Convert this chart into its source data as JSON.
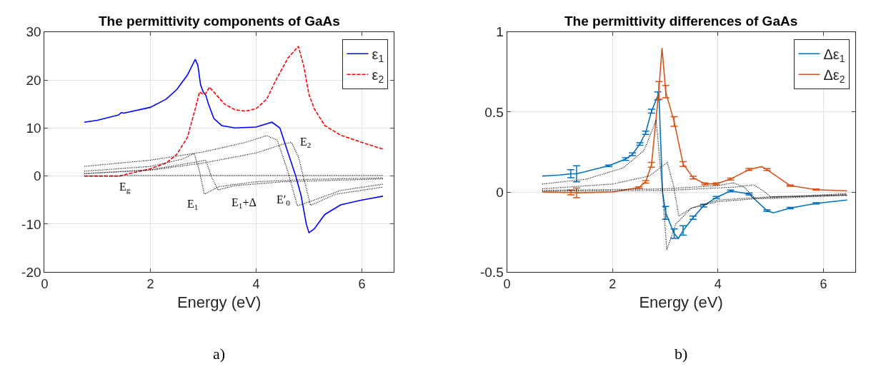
{
  "chart_data": [
    {
      "type": "line",
      "title": "The permittivity components of GaAs",
      "xlabel": "Energy (eV)",
      "xlim": [
        0,
        6.6
      ],
      "xticks": [
        0,
        2,
        4,
        6
      ],
      "ylim": [
        -20,
        30
      ],
      "yticks": [
        -20,
        -10,
        0,
        10,
        20,
        30
      ],
      "grid": true,
      "legend": "top right",
      "series": [
        {
          "name": "ε$_{1}$",
          "color": "#0000ff",
          "line_style": "solid",
          "x": [
            0.75,
            1.0,
            1.4,
            1.45,
            1.5,
            2.0,
            2.3,
            2.5,
            2.7,
            2.85,
            2.9,
            2.95,
            3.0,
            3.05,
            3.1,
            3.2,
            3.35,
            3.6,
            4.0,
            4.3,
            4.45,
            4.6,
            4.75,
            4.85,
            4.95,
            5.0,
            5.1,
            5.3,
            5.6,
            6.0,
            6.4
          ],
          "values": [
            11.2,
            11.6,
            12.7,
            13.2,
            13.1,
            14.3,
            16,
            18,
            21,
            24.3,
            23,
            19,
            17.5,
            16.8,
            15,
            12,
            10.5,
            10,
            10.2,
            11.2,
            10,
            5,
            0,
            -4,
            -10,
            -11.8,
            -11,
            -8,
            -6,
            -5,
            -4.2
          ]
        },
        {
          "name": "ε$_{2}$",
          "color": "#ff0000",
          "line_style": "dashed",
          "x": [
            0.75,
            1.42,
            1.6,
            2.0,
            2.3,
            2.5,
            2.7,
            2.85,
            2.93,
            3.0,
            3.05,
            3.12,
            3.2,
            3.4,
            3.6,
            3.8,
            4.0,
            4.2,
            4.4,
            4.6,
            4.8,
            4.9,
            5.0,
            5.1,
            5.3,
            5.6,
            6.0,
            6.4
          ],
          "values": [
            0,
            0,
            0.5,
            1.5,
            2.7,
            4.5,
            8,
            14,
            17.5,
            17,
            17.2,
            18.5,
            17.5,
            15,
            13.8,
            13.5,
            14,
            16,
            20.5,
            24.5,
            27,
            23,
            17,
            14,
            10.5,
            8.5,
            7,
            5.6
          ]
        },
        {
          "color": "#000000",
          "line_style": "dotted",
          "x": [
            0.75,
            1.42,
            1.5,
            3.0,
            6.4
          ],
          "values": [
            0,
            0,
            0.1,
            0.1,
            0.1
          ]
        },
        {
          "color": "#000000",
          "line_style": "dotted",
          "x": [
            0.75,
            2.0,
            2.6,
            2.83,
            2.93,
            3.02,
            3.3,
            4.0,
            5.0,
            6.4
          ],
          "values": [
            1.0,
            2.0,
            3.5,
            4.7,
            1,
            -3.8,
            -2.2,
            -1.2,
            -0.7,
            -0.4
          ]
        },
        {
          "color": "#000000",
          "line_style": "dotted",
          "x": [
            0.75,
            2.0,
            2.8,
            3.05,
            3.15,
            3.28,
            3.6,
            4.5,
            6.4
          ],
          "values": [
            0.5,
            1.3,
            2.8,
            3.3,
            0,
            -2.9,
            -2,
            -1.2,
            -0.6
          ]
        },
        {
          "color": "#000000",
          "line_style": "dotted",
          "x": [
            0.75,
            2.0,
            3.0,
            3.8,
            4.2,
            4.4,
            4.6,
            4.78,
            5.1,
            5.6,
            6.4
          ],
          "values": [
            2.0,
            3.3,
            5.0,
            7,
            8.4,
            7.5,
            1,
            -6.2,
            -5,
            -3,
            -1.7
          ]
        },
        {
          "color": "#000000",
          "line_style": "dotted",
          "x": [
            0.75,
            2.0,
            3.0,
            4.0,
            4.5,
            4.67,
            4.8,
            5.03,
            5.5,
            6.4
          ],
          "values": [
            0.5,
            1.2,
            2.7,
            4.8,
            6.6,
            7.0,
            4,
            -6.1,
            -3.8,
            -2.3
          ]
        }
      ],
      "annotations": [
        {
          "text": "E$_{g}$",
          "x": 1.42,
          "y": 0
        },
        {
          "text": "E$_{1}$",
          "x": 3.02,
          "y": -3.8
        },
        {
          "text": "E$_{1}$+Δ",
          "x": 3.28,
          "y": -2.9
        },
        {
          "text": "E′$_{0}$",
          "x": 4.78,
          "y": -6.2
        },
        {
          "text": "E$_{2}$",
          "x": 4.67,
          "y": 7.0
        },
        "a)"
      ]
    },
    {
      "type": "line",
      "title": "The permittivity differences of GaAs",
      "xlabel": "Energy (eV)",
      "xlim": [
        0,
        6.6
      ],
      "xticks": [
        0,
        2,
        4,
        6
      ],
      "ylim": [
        -0.5,
        1
      ],
      "yticks": [
        -0.5,
        0,
        0.5,
        1
      ],
      "grid": true,
      "legend": "top right",
      "series": [
        {
          "name": "Δε$_{1}$",
          "color": "#0072bd",
          "line_style": "solid",
          "x": [
            0.67,
            1.0,
            1.21,
            1.32,
            1.93,
            2.25,
            2.38,
            2.52,
            2.63,
            2.74,
            2.86,
            2.88,
            2.95,
            3.01,
            3.17,
            3.25,
            3.34,
            3.53,
            3.73,
            3.97,
            4.24,
            4.59,
            4.93,
            5.05,
            5.37,
            5.86,
            6.45
          ],
          "values": [
            0.1,
            0.106,
            0.114,
            0.114,
            0.164,
            0.206,
            0.236,
            0.3,
            0.37,
            0.505,
            0.6,
            0.62,
            0.0,
            -0.13,
            -0.26,
            -0.29,
            -0.24,
            -0.16,
            -0.085,
            -0.034,
            0.007,
            -0.012,
            -0.116,
            -0.13,
            -0.1,
            -0.071,
            -0.05
          ],
          "errors": [
            null,
            null,
            0.025,
            0.05,
            0.005,
            0.008,
            0.008,
            0.008,
            0.01,
            0.012,
            0.025,
            null,
            null,
            0.04,
            0.03,
            null,
            0.03,
            0.01,
            0.008,
            0.006,
            0.006,
            0.006,
            0.005,
            null,
            0.004,
            0.004,
            null
          ]
        },
        {
          "name": "Δε$_{2}$",
          "color": "#d95319",
          "line_style": "solid",
          "x": [
            0.67,
            1.21,
            1.32,
            2.0,
            2.5,
            2.63,
            2.74,
            2.88,
            2.94,
            3.01,
            3.1,
            3.17,
            3.34,
            3.53,
            3.75,
            3.97,
            4.24,
            4.59,
            4.83,
            4.93,
            5.37,
            5.86,
            6.45
          ],
          "values": [
            0.0,
            -0.003,
            -0.005,
            0.0,
            0.028,
            0.064,
            0.17,
            0.635,
            0.9,
            0.627,
            0.52,
            0.44,
            0.175,
            0.09,
            0.051,
            0.051,
            0.081,
            0.141,
            0.159,
            0.14,
            0.04,
            0.015,
            0.007
          ],
          "errors": [
            null,
            0.015,
            0.03,
            null,
            0.005,
            0.008,
            0.015,
            0.055,
            null,
            0.038,
            null,
            0.03,
            0.015,
            0.008,
            0.006,
            0.006,
            0.006,
            0.006,
            null,
            0.006,
            0.004,
            0.004,
            null
          ]
        },
        {
          "color": "#000000",
          "line_style": "dotted",
          "x": [
            0.67,
            1.5,
            2.2,
            2.6,
            2.83,
            2.95,
            3.03,
            3.2,
            3.5,
            4.0,
            5.0,
            6.45
          ],
          "values": [
            0.05,
            0.08,
            0.15,
            0.26,
            0.45,
            0,
            -0.36,
            -0.2,
            -0.1,
            -0.05,
            -0.03,
            -0.02
          ]
        },
        {
          "color": "#000000",
          "line_style": "dotted",
          "x": [
            0.67,
            2.0,
            2.7,
            3.04,
            3.15,
            3.26,
            3.5,
            4.0,
            5.0,
            6.45
          ],
          "values": [
            0.02,
            0.05,
            0.1,
            0.185,
            0.05,
            -0.15,
            -0.1,
            -0.06,
            -0.035,
            -0.015
          ]
        },
        {
          "color": "#000000",
          "line_style": "dotted",
          "x": [
            0.67,
            3.0,
            4.0,
            4.29,
            4.5,
            4.7,
            5.0,
            6.45
          ],
          "values": [
            0.01,
            0.02,
            0.04,
            0.058,
            0.03,
            -0.04,
            -0.04,
            -0.02
          ]
        },
        {
          "color": "#000000",
          "line_style": "dotted",
          "x": [
            0.67,
            3.0,
            4.3,
            4.68,
            4.85,
            5.0,
            5.5,
            6.45
          ],
          "values": [
            0.005,
            0.01,
            0.03,
            0.045,
            0.01,
            -0.03,
            -0.025,
            -0.01
          ]
        }
      ],
      "annotations": [
        "b)"
      ]
    }
  ]
}
